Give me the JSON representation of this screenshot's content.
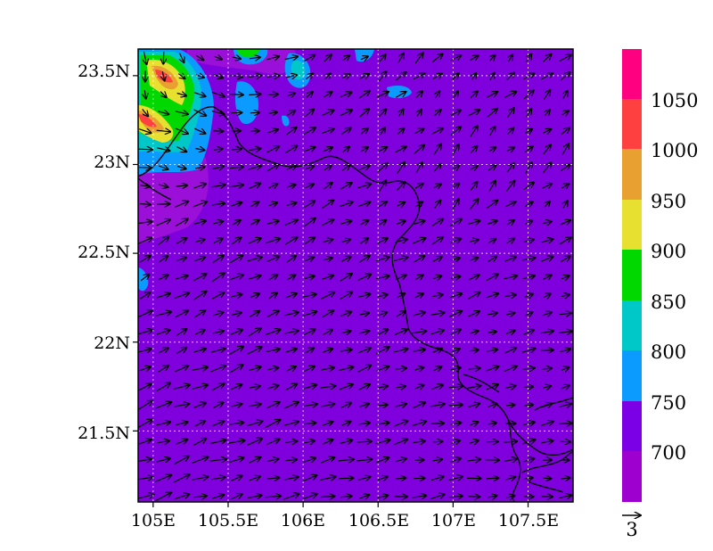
{
  "map": {
    "lon_range": [
      104.9,
      107.8
    ],
    "lat_range": [
      21.1,
      23.65
    ],
    "lon_ticks": [
      {
        "value": 105.0,
        "label": "105E"
      },
      {
        "value": 105.5,
        "label": "105.5E"
      },
      {
        "value": 106.0,
        "label": "106E"
      },
      {
        "value": 106.5,
        "label": "106.5E"
      },
      {
        "value": 107.0,
        "label": "107E"
      },
      {
        "value": 107.5,
        "label": "107.5E"
      }
    ],
    "lat_ticks": [
      {
        "value": 23.5,
        "label": "23.5N"
      },
      {
        "value": 23.0,
        "label": "23N"
      },
      {
        "value": 22.5,
        "label": "22.5N"
      },
      {
        "value": 22.0,
        "label": "22N"
      },
      {
        "value": 21.5,
        "label": "21.5N"
      }
    ],
    "grid": true,
    "background_color": "#8000dd",
    "vector_reference": {
      "label": "3",
      "magnitude": 3
    }
  },
  "colorbar": {
    "levels": [
      {
        "color": "#9e00d0",
        "label": ""
      },
      {
        "color": "#7b00e5",
        "label": "700"
      },
      {
        "color": "#0b9bff",
        "label": "750"
      },
      {
        "color": "#00c8c8",
        "label": "800"
      },
      {
        "color": "#00d800",
        "label": "850"
      },
      {
        "color": "#e8e030",
        "label": "900"
      },
      {
        "color": "#e8a030",
        "label": "950"
      },
      {
        "color": "#ff4040",
        "label": "1000"
      },
      {
        "color": "#ff0080",
        "label": "1050"
      }
    ]
  }
}
